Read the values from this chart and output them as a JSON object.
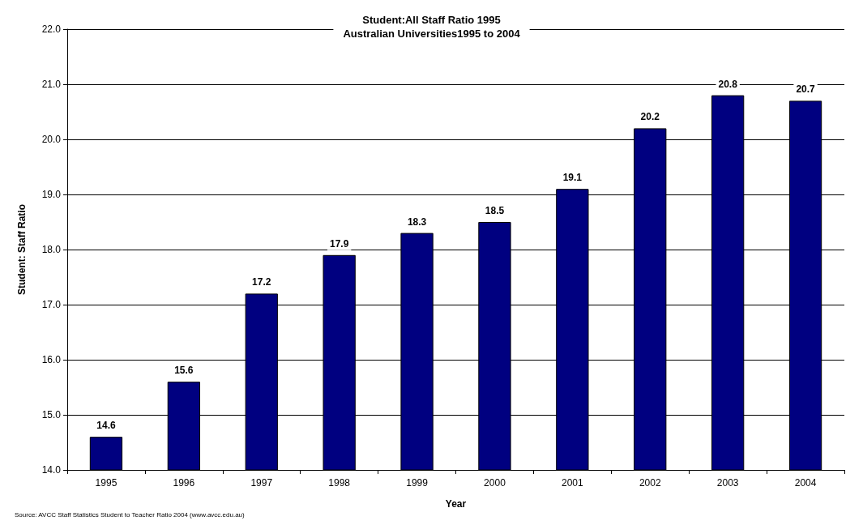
{
  "chart_data": {
    "type": "bar",
    "title": "Student:All Staff Ratio 1995",
    "subtitle": "Australian Universities1995 to 2004",
    "xlabel": "Year",
    "ylabel": "Student: Staff Ratio",
    "annotations": [
      "Source: AVCC Staff Statistics Student to Teacher Ratio 2004 (www.avcc.edu.au)"
    ],
    "categories": [
      "1995",
      "1996",
      "1997",
      "1998",
      "1999",
      "2000",
      "2001",
      "2002",
      "2003",
      "2004"
    ],
    "values": [
      14.6,
      15.6,
      17.2,
      17.9,
      18.3,
      18.5,
      19.1,
      20.2,
      20.8,
      20.7
    ],
    "color": "#000080",
    "ylim": [
      14,
      22
    ],
    "yticks": [
      {
        "value": 14,
        "label": "14.0"
      },
      {
        "value": 15,
        "label": "15.0"
      },
      {
        "value": 16,
        "label": "16.0"
      },
      {
        "value": 17,
        "label": "17.0"
      },
      {
        "value": 18,
        "label": "18.0"
      },
      {
        "value": 19,
        "label": "19.0"
      },
      {
        "value": 20,
        "label": "20.0"
      },
      {
        "value": 21,
        "label": "21.0"
      },
      {
        "value": 22,
        "label": "22.0"
      }
    ],
    "grid": "y",
    "data_labels": true
  }
}
